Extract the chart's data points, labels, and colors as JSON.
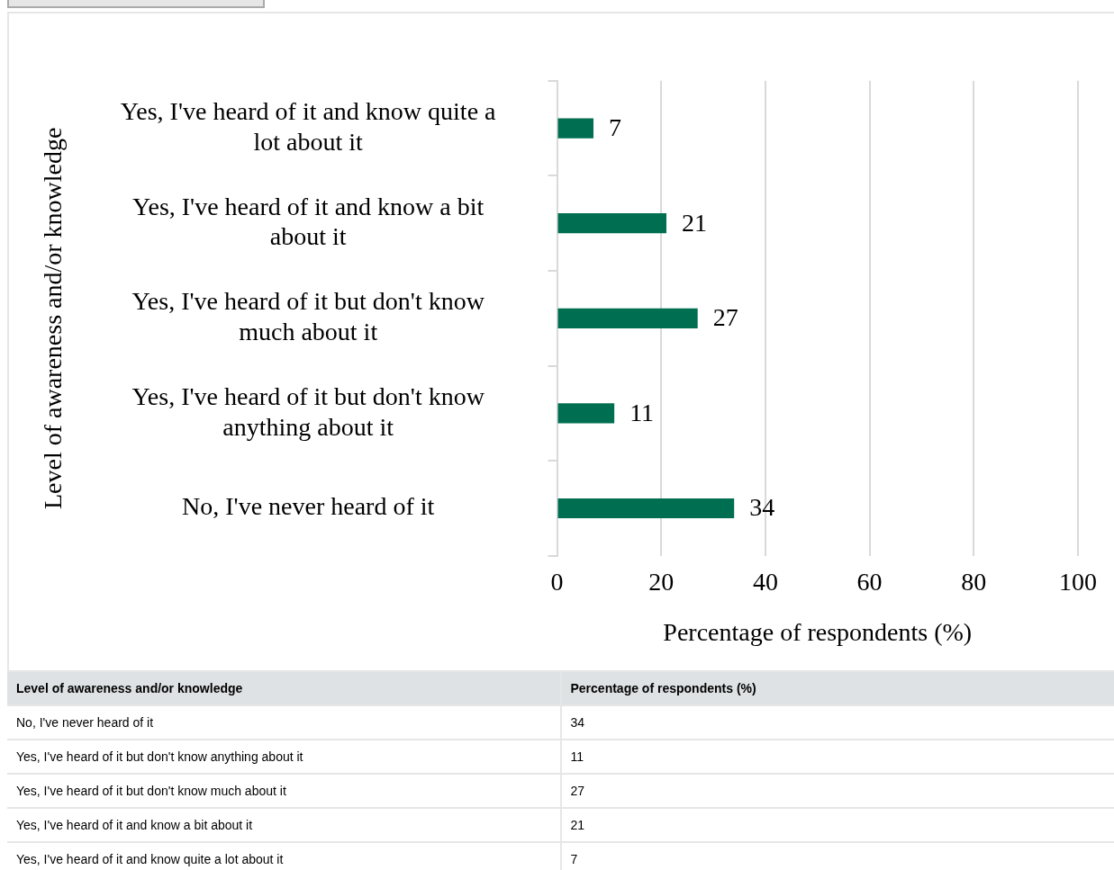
{
  "chart_data": {
    "type": "bar",
    "orientation": "horizontal",
    "categories": [
      "Yes, I've heard of it and know quite a lot about it",
      "Yes, I've heard of it and know a bit about it",
      "Yes, I've heard of it but don't know much about it",
      "Yes, I've heard of it but don't know anything about it",
      "No, I've never heard of it"
    ],
    "values": [
      7,
      21,
      27,
      11,
      34
    ],
    "color": "#006f51",
    "xlabel": "Percentage of respondents (%)",
    "ylabel": "Level of awareness and/or knowledge",
    "xlim": [
      0,
      100
    ],
    "xticks": [
      0,
      20,
      40,
      60,
      80,
      100
    ],
    "grid": "x",
    "legend": false,
    "data_labels": true,
    "annotations": [
      "Level of awareness and/or knowledge",
      "Percentage of respondents (%)",
      "No, I've never heard of it",
      "34",
      "Yes, I've heard of it but don't know anything about it",
      "11",
      "Yes, I've heard of it but don't know much about it",
      "27",
      "Yes, I've heard of it and know a bit about it",
      "21",
      "Yes, I've heard of it and know quite a lot about it",
      "7"
    ]
  }
}
